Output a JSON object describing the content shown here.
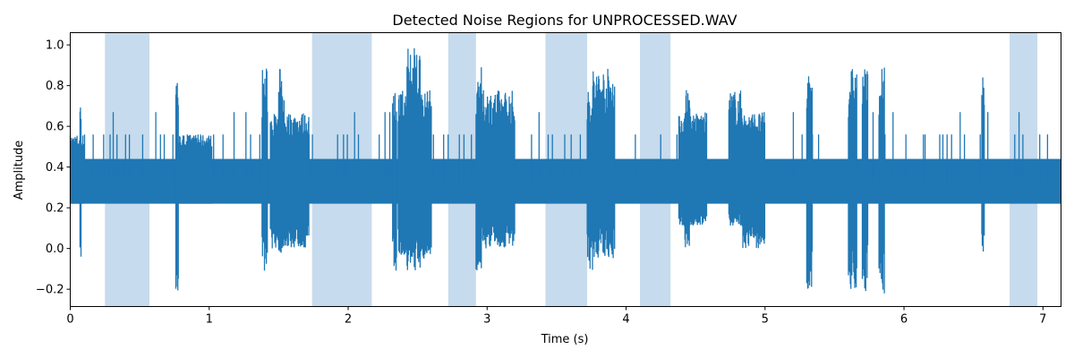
{
  "chart_data": {
    "type": "line",
    "title": "Detected Noise Regions for UNPROCESSED.WAV",
    "xlabel": "Time (s)",
    "ylabel": "Amplitude",
    "xlim": [
      0,
      7.13
    ],
    "ylim": [
      -0.285,
      1.06
    ],
    "xticks": [
      0,
      1,
      2,
      3,
      4,
      5,
      6,
      7
    ],
    "yticks": [
      -0.2,
      0.0,
      0.2,
      0.4,
      0.6,
      0.8,
      1.0
    ],
    "ytick_labels": [
      "−0.2",
      "0.0",
      "0.2",
      "0.4",
      "0.6",
      "0.8",
      "1.0"
    ],
    "grid": false,
    "series_color": "#1f77b4",
    "region_color": "#c6dbed",
    "noise_regions": [
      [
        0.25,
        0.57
      ],
      [
        1.74,
        2.17
      ],
      [
        2.72,
        2.92
      ],
      [
        3.42,
        3.72
      ],
      [
        4.1,
        4.32
      ],
      [
        6.76,
        6.96
      ]
    ],
    "baseline_band": [
      0.22,
      0.44
    ],
    "bursts": [
      {
        "start": 0.0,
        "end": 0.1,
        "low": 0.22,
        "high": 0.56
      },
      {
        "start": 0.07,
        "end": 0.08,
        "low": -0.11,
        "high": 0.78
      },
      {
        "start": 0.76,
        "end": 0.78,
        "low": -0.22,
        "high": 0.89
      },
      {
        "start": 0.78,
        "end": 1.02,
        "low": 0.22,
        "high": 0.56
      },
      {
        "start": 1.38,
        "end": 1.42,
        "low": -0.11,
        "high": 0.89
      },
      {
        "start": 1.44,
        "end": 1.72,
        "low": 0.0,
        "high": 0.67
      },
      {
        "start": 1.5,
        "end": 1.54,
        "low": -0.05,
        "high": 0.89
      },
      {
        "start": 2.32,
        "end": 2.35,
        "low": -0.11,
        "high": 0.78
      },
      {
        "start": 2.36,
        "end": 2.6,
        "low": -0.05,
        "high": 0.78
      },
      {
        "start": 2.42,
        "end": 2.52,
        "low": -0.11,
        "high": 1.0
      },
      {
        "start": 2.92,
        "end": 2.96,
        "low": -0.11,
        "high": 0.89
      },
      {
        "start": 2.96,
        "end": 3.2,
        "low": 0.0,
        "high": 0.78
      },
      {
        "start": 3.72,
        "end": 3.76,
        "low": -0.11,
        "high": 0.78
      },
      {
        "start": 3.76,
        "end": 3.92,
        "low": -0.05,
        "high": 0.89
      },
      {
        "start": 4.38,
        "end": 4.58,
        "low": 0.11,
        "high": 0.67
      },
      {
        "start": 4.42,
        "end": 4.46,
        "low": 0.0,
        "high": 0.78
      },
      {
        "start": 4.74,
        "end": 4.84,
        "low": 0.11,
        "high": 0.78
      },
      {
        "start": 4.84,
        "end": 5.0,
        "low": 0.0,
        "high": 0.67
      },
      {
        "start": 5.3,
        "end": 5.34,
        "low": -0.22,
        "high": 0.89
      },
      {
        "start": 5.6,
        "end": 5.66,
        "low": -0.22,
        "high": 0.89
      },
      {
        "start": 5.7,
        "end": 5.74,
        "low": -0.22,
        "high": 0.89
      },
      {
        "start": 5.82,
        "end": 5.86,
        "low": -0.22,
        "high": 0.89
      },
      {
        "start": 6.56,
        "end": 6.58,
        "low": -0.05,
        "high": 0.89
      }
    ]
  }
}
